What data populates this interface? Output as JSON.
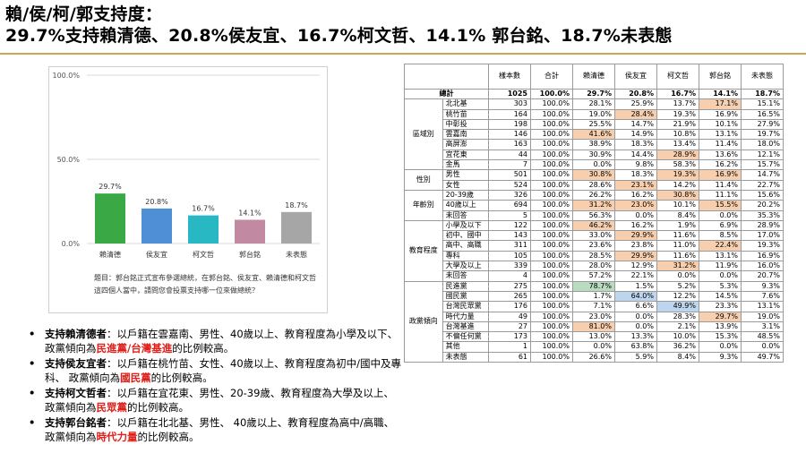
{
  "title": {
    "line1": "賴/侯/柯/郭支持度：",
    "line2": "29.7%支持賴清德、20.8%侯友宜、16.7%柯文哲、14.1% 郭台銘、18.7%未表態"
  },
  "chart_data": {
    "type": "bar",
    "categories": [
      "賴清德",
      "侯友宜",
      "柯文哲",
      "郭台銘",
      "未表態"
    ],
    "values": [
      29.7,
      20.8,
      16.7,
      14.1,
      18.7
    ],
    "value_labels": [
      "29.7%",
      "20.8%",
      "16.7%",
      "14.1%",
      "18.7%"
    ],
    "colors": [
      "#3aa844",
      "#4f8fd6",
      "#28b8c4",
      "#c28aa2",
      "#a6a6a6"
    ],
    "ylim": [
      0,
      100
    ],
    "yticks": [
      "0.0%",
      "50.0%",
      "100.0%"
    ],
    "ytick_values": [
      0,
      50,
      100
    ],
    "grid": true,
    "legend": "none"
  },
  "caption": "題目：郭台銘正式宣布參選總統，在郭台銘、侯友宜、賴清德和柯文哲這四個人當中，請問您會投票支持哪一位來做總統？",
  "bullets": [
    {
      "name": "支持賴清德者",
      "pre": "：以戶籍在雲嘉南、男性、40歲以上、教育程度為小學及以下、 政黨傾向為",
      "hl": "民進黨/台灣基進",
      "post": "的比例較高。"
    },
    {
      "name": "支持侯友宜者",
      "pre": "：以戶籍在桃竹苗、女性、40歲以上、教育程度為初中/國中及專科、 政黨傾向為",
      "hl": "國民黨",
      "post": "的比例較高。"
    },
    {
      "name": "支持柯文哲者",
      "pre": "：以戶籍在宜花東、男性、20-39歲、教育程度為大學及以上、 政黨傾向為",
      "hl": "民眾黨",
      "post": "的比例較高。"
    },
    {
      "name": "支持郭台銘者",
      "pre": "：以戶籍在北北基、男性、 40歲以上、教育程度為高中/高職、 政黨傾向為",
      "hl": "時代力量",
      "post": "的比例較高。"
    }
  ],
  "table": {
    "headers": [
      "樣本數",
      "合計",
      "賴清德",
      "侯友宜",
      "柯文哲",
      "郭台銘",
      "未表態"
    ],
    "total": {
      "label": "總計",
      "values": [
        "1025",
        "100.0%",
        "29.7%",
        "20.8%",
        "16.7%",
        "14.1%",
        "18.7%"
      ]
    },
    "groups": [
      {
        "name": "區域別",
        "rows": [
          {
            "label": "北北基",
            "values": [
              "303",
              "100.0%",
              "28.1%",
              "25.9%",
              "13.7%",
              "17.1%",
              "15.1%"
            ],
            "hl": [
              5
            ]
          },
          {
            "label": "桃竹苗",
            "values": [
              "164",
              "100.0%",
              "19.0%",
              "28.4%",
              "19.3%",
              "16.9%",
              "16.5%"
            ],
            "hl": [
              3
            ]
          },
          {
            "label": "中彰投",
            "values": [
              "198",
              "100.0%",
              "25.5%",
              "14.7%",
              "21.9%",
              "10.1%",
              "27.9%"
            ],
            "hl": []
          },
          {
            "label": "雲嘉南",
            "values": [
              "146",
              "100.0%",
              "41.6%",
              "14.9%",
              "10.8%",
              "13.1%",
              "19.7%"
            ],
            "hl": [
              2
            ]
          },
          {
            "label": "高屏澎",
            "values": [
              "163",
              "100.0%",
              "38.9%",
              "18.3%",
              "13.4%",
              "11.4%",
              "18.0%"
            ],
            "hl": []
          },
          {
            "label": "宜花東",
            "values": [
              "44",
              "100.0%",
              "30.9%",
              "14.4%",
              "28.9%",
              "13.6%",
              "12.1%"
            ],
            "hl": [
              4
            ]
          },
          {
            "label": "金馬",
            "values": [
              "7",
              "100.0%",
              "0.0%",
              "9.8%",
              "58.3%",
              "16.2%",
              "15.7%"
            ],
            "hl": []
          }
        ]
      },
      {
        "name": "性別",
        "rows": [
          {
            "label": "男性",
            "values": [
              "501",
              "100.0%",
              "30.8%",
              "18.3%",
              "19.3%",
              "16.9%",
              "14.7%"
            ],
            "hl": [
              2,
              4,
              5
            ]
          },
          {
            "label": "女性",
            "values": [
              "524",
              "100.0%",
              "28.6%",
              "23.1%",
              "14.2%",
              "11.4%",
              "22.7%"
            ],
            "hl": [
              3
            ]
          }
        ]
      },
      {
        "name": "年齡別",
        "rows": [
          {
            "label": "20-39歲",
            "values": [
              "326",
              "100.0%",
              "26.2%",
              "16.2%",
              "30.8%",
              "11.1%",
              "15.6%"
            ],
            "hl": [
              4
            ]
          },
          {
            "label": "40歲以上",
            "values": [
              "694",
              "100.0%",
              "31.2%",
              "23.0%",
              "10.1%",
              "15.5%",
              "20.2%"
            ],
            "hl": [
              2,
              3,
              5
            ]
          },
          {
            "label": "未回答",
            "values": [
              "5",
              "100.0%",
              "56.3%",
              "0.0%",
              "8.4%",
              "0.0%",
              "35.3%"
            ],
            "hl": []
          }
        ]
      },
      {
        "name": "教育程度",
        "rows": [
          {
            "label": "小學及以下",
            "values": [
              "122",
              "100.0%",
              "46.2%",
              "16.2%",
              "1.9%",
              "6.9%",
              "28.9%"
            ],
            "hl": [
              2
            ]
          },
          {
            "label": "初中、國中",
            "values": [
              "143",
              "100.0%",
              "33.0%",
              "29.9%",
              "11.6%",
              "8.5%",
              "17.0%"
            ],
            "hl": [
              3
            ]
          },
          {
            "label": "高中、高職",
            "values": [
              "311",
              "100.0%",
              "23.6%",
              "23.8%",
              "11.0%",
              "22.4%",
              "19.3%"
            ],
            "hl": [
              5
            ]
          },
          {
            "label": "專科",
            "values": [
              "105",
              "100.0%",
              "28.5%",
              "29.9%",
              "11.6%",
              "13.1%",
              "16.9%"
            ],
            "hl": [
              3
            ]
          },
          {
            "label": "大學及以上",
            "values": [
              "339",
              "100.0%",
              "28.0%",
              "12.9%",
              "31.2%",
              "11.9%",
              "16.0%"
            ],
            "hl": [
              4
            ]
          },
          {
            "label": "未回答",
            "values": [
              "4",
              "100.0%",
              "57.2%",
              "22.1%",
              "0.0%",
              "0.0%",
              "20.7%"
            ],
            "hl": []
          }
        ]
      },
      {
        "name": "政黨傾向",
        "rows": [
          {
            "label": "民進黨",
            "values": [
              "275",
              "100.0%",
              "78.7%",
              "1.5%",
              "5.2%",
              "5.3%",
              "9.3%"
            ],
            "hl": [],
            "hl2": [
              2
            ]
          },
          {
            "label": "國民黨",
            "values": [
              "265",
              "100.0%",
              "1.7%",
              "64.0%",
              "12.2%",
              "14.5%",
              "7.6%"
            ],
            "hl": [],
            "hl3": [
              3
            ]
          },
          {
            "label": "台灣民眾黨",
            "values": [
              "176",
              "100.0%",
              "7.1%",
              "6.6%",
              "49.9%",
              "23.3%",
              "13.1%"
            ],
            "hl": [],
            "hl3": [
              4
            ]
          },
          {
            "label": "時代力量",
            "values": [
              "49",
              "100.0%",
              "23.0%",
              "0.0%",
              "28.3%",
              "29.7%",
              "19.0%"
            ],
            "hl": [
              5
            ]
          },
          {
            "label": "台灣基進",
            "values": [
              "27",
              "100.0%",
              "81.0%",
              "0.0%",
              "2.1%",
              "13.9%",
              "3.1%"
            ],
            "hl": [
              2
            ]
          },
          {
            "label": "不偏任何黨",
            "values": [
              "173",
              "100.0%",
              "13.0%",
              "13.3%",
              "10.0%",
              "15.3%",
              "48.5%"
            ],
            "hl": []
          },
          {
            "label": "其他",
            "values": [
              "1",
              "100.0%",
              "0.0%",
              "63.8%",
              "36.2%",
              "0.0%",
              "0.0%"
            ],
            "hl": []
          },
          {
            "label": "未表態",
            "values": [
              "61",
              "100.0%",
              "26.6%",
              "5.9%",
              "8.4%",
              "9.3%",
              "49.7%"
            ],
            "hl": []
          }
        ]
      }
    ]
  }
}
